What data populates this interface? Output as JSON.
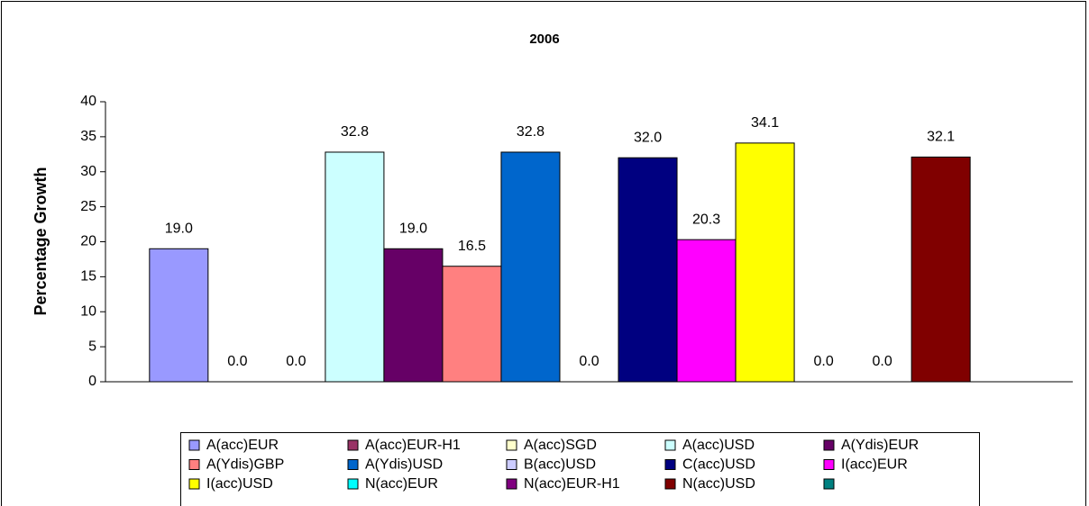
{
  "chart_data": {
    "type": "bar",
    "title": "2006",
    "y_label": "Percentage Growth",
    "categories": [
      null
    ],
    "series": [
      {
        "name": "A(acc)EUR",
        "color": "#9999ff",
        "values": [
          19.0
        ],
        "value_labels": [
          "19.0"
        ]
      },
      {
        "name": "A(acc)EUR-H1",
        "color": "#993366",
        "values": [
          0.0
        ],
        "value_labels": [
          "0.0"
        ]
      },
      {
        "name": "A(acc)SGD",
        "color": "#ffffcc",
        "values": [
          0.0
        ],
        "value_labels": [
          "0.0"
        ]
      },
      {
        "name": "A(acc)USD",
        "color": "#ccffff",
        "values": [
          32.8
        ],
        "value_labels": [
          "32.8"
        ]
      },
      {
        "name": "A(Ydis)EUR",
        "color": "#660066",
        "values": [
          19.0
        ],
        "value_labels": [
          "19.0"
        ]
      },
      {
        "name": "A(Ydis)GBP",
        "color": "#ff8080",
        "values": [
          16.5
        ],
        "value_labels": [
          "16.5"
        ]
      },
      {
        "name": "A(Ydis)USD",
        "color": "#0066cc",
        "values": [
          32.8
        ],
        "value_labels": [
          "32.8"
        ]
      },
      {
        "name": "B(acc)USD",
        "color": "#ccccff",
        "values": [
          0.0
        ],
        "value_labels": [
          "0.0"
        ]
      },
      {
        "name": "C(acc)USD",
        "color": "#000080",
        "values": [
          32.0
        ],
        "value_labels": [
          "32.0"
        ]
      },
      {
        "name": "I(acc)EUR",
        "color": "#ff00ff",
        "values": [
          20.3
        ],
        "value_labels": [
          "20.3"
        ]
      },
      {
        "name": "I(acc)USD",
        "color": "#ffff00",
        "values": [
          34.1
        ],
        "value_labels": [
          "34.1"
        ]
      },
      {
        "name": "N(acc)EUR",
        "color": "#00ffff",
        "values": [
          0.0
        ],
        "value_labels": [
          "0.0"
        ]
      },
      {
        "name": "N(acc)EUR-H1",
        "color": "#800080",
        "values": [
          0.0
        ],
        "value_labels": [
          "0.0"
        ]
      },
      {
        "name": "N(acc)USD",
        "color": "#800000",
        "values": [
          32.1
        ],
        "value_labels": [
          "32.1"
        ]
      },
      {
        "name": null,
        "color": "#008080",
        "values": [
          null
        ]
      }
    ],
    "ylim": [
      0,
      40
    ],
    "yticks": [
      0,
      5,
      10,
      15,
      20,
      25,
      30,
      35,
      40
    ],
    "grid": false,
    "legend": "bottom"
  }
}
